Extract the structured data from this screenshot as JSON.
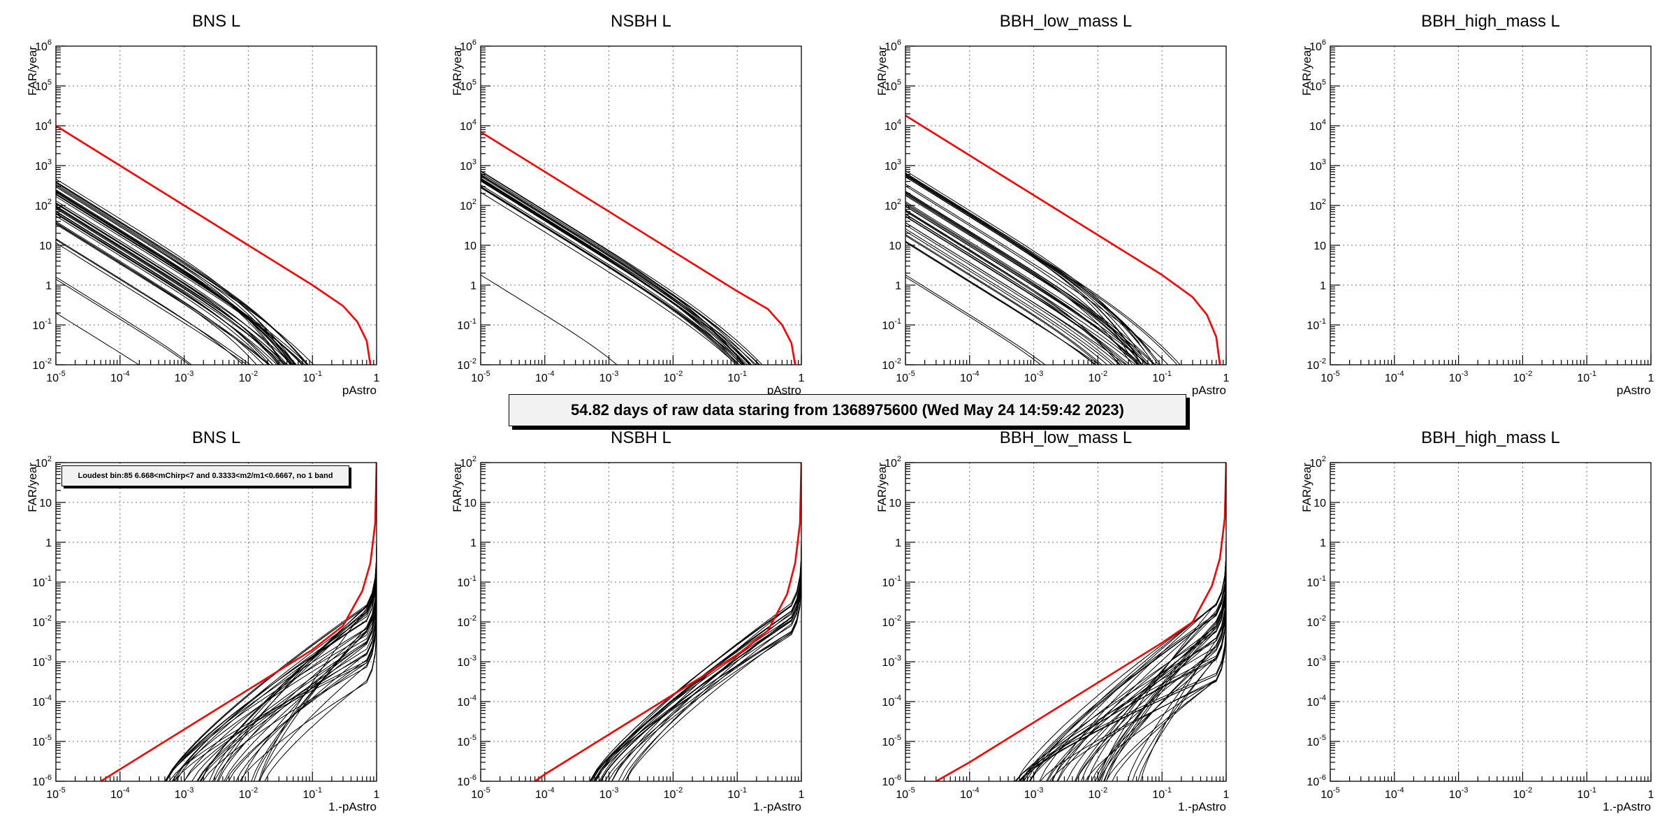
{
  "banner": {
    "text": "54.82 days of raw data staring from 1368975600 (Wed May 24 14:59:42 2023)"
  },
  "annotations": {
    "loudest": "Loudest bin:85 6.668<mChirp<7 and 0.3333<m2/m1<0.6667, no 1 band"
  },
  "colors": {
    "signal": "#ff0000",
    "bins": "#000000",
    "grid": "#000000"
  },
  "chart_data": [
    {
      "type": "line",
      "title": "BNS L",
      "xlabel": "pAstro",
      "ylabel": "FAR/year",
      "xscale": "log",
      "yscale": "log",
      "xlim": [
        1e-05,
        1
      ],
      "ylim": [
        0.01,
        1000000
      ],
      "grid": true,
      "xticks": [
        "10^-5",
        "10^-4",
        "10^-3",
        "10^-2",
        "10^-1",
        "1"
      ],
      "yticks": [
        "10^-2",
        "10^-1",
        "1",
        "10",
        "10^2",
        "10^3",
        "10^4",
        "10^5",
        "10^6"
      ],
      "highlight": {
        "x": [
          1e-05,
          0.0001,
          0.001,
          0.01,
          0.1,
          0.3,
          0.5,
          0.7,
          0.8
        ],
        "y": [
          10000,
          1000,
          100,
          10,
          1,
          0.3,
          0.12,
          0.04,
          0.01
        ]
      },
      "family": {
        "count": 40,
        "y_at_xmin_range": [
          10,
          500
        ],
        "x_end_range": [
          0.04,
          0.2
        ],
        "outliers_y_at_xmin": [
          1.6,
          1.4,
          0.2
        ]
      }
    },
    {
      "type": "line",
      "title": "NSBH L",
      "xlabel": "pAstro",
      "ylabel": "FAR/year",
      "xscale": "log",
      "yscale": "log",
      "xlim": [
        1e-05,
        1
      ],
      "ylim": [
        0.01,
        1000000
      ],
      "grid": true,
      "xticks": [
        "10^-5",
        "10^-4",
        "10^-3",
        "10^-2",
        "10^-1",
        "1"
      ],
      "yticks": [
        "10^-2",
        "10^-1",
        "1",
        "10",
        "10^2",
        "10^3",
        "10^4",
        "10^5",
        "10^6"
      ],
      "highlight": {
        "x": [
          1e-05,
          0.0001,
          0.001,
          0.01,
          0.1,
          0.3,
          0.5,
          0.7,
          0.8
        ],
        "y": [
          7000,
          700,
          70,
          7,
          0.7,
          0.25,
          0.1,
          0.035,
          0.01
        ]
      },
      "family": {
        "count": 22,
        "y_at_xmin_range": [
          200,
          800
        ],
        "x_end_range": [
          0.2,
          0.5
        ],
        "outliers_y_at_xmin": [
          1.8
        ]
      }
    },
    {
      "type": "line",
      "title": "BBH_low_mass L",
      "xlabel": "pAstro",
      "ylabel": "FAR/year",
      "xscale": "log",
      "yscale": "log",
      "xlim": [
        1e-05,
        1
      ],
      "ylim": [
        0.01,
        1000000
      ],
      "grid": true,
      "xticks": [
        "10^-5",
        "10^-4",
        "10^-3",
        "10^-2",
        "10^-1",
        "1"
      ],
      "yticks": [
        "10^-2",
        "10^-1",
        "1",
        "10",
        "10^2",
        "10^3",
        "10^4",
        "10^5",
        "10^6"
      ],
      "highlight": {
        "x": [
          1e-05,
          0.0001,
          0.001,
          0.01,
          0.1,
          0.3,
          0.5,
          0.7,
          0.8
        ],
        "y": [
          18000,
          1800,
          180,
          18,
          1.8,
          0.5,
          0.18,
          0.05,
          0.01
        ]
      },
      "family": {
        "count": 45,
        "y_at_xmin_range": [
          5,
          900
        ],
        "x_end_range": [
          0.03,
          0.4
        ],
        "outliers_y_at_xmin": [
          1.8,
          1.6
        ]
      }
    },
    {
      "type": "line",
      "title": "BBH_high_mass L",
      "xlabel": "pAstro",
      "ylabel": "FAR/year",
      "xscale": "log",
      "yscale": "log",
      "xlim": [
        1e-05,
        1
      ],
      "ylim": [
        0.01,
        1000000
      ],
      "grid": true,
      "xticks": [
        "10^-5",
        "10^-4",
        "10^-3",
        "10^-2",
        "10^-1",
        "1"
      ],
      "yticks": [
        "10^-2",
        "10^-1",
        "1",
        "10",
        "10^2",
        "10^3",
        "10^4",
        "10^5",
        "10^6"
      ]
    },
    {
      "type": "line",
      "title": "BNS L",
      "xlabel": "1.-pAstro",
      "ylabel": "FAR/year",
      "xscale": "log",
      "yscale": "log",
      "xlim": [
        1e-05,
        1
      ],
      "ylim": [
        1e-06,
        100
      ],
      "grid": true,
      "xticks": [
        "10^-5",
        "10^-4",
        "10^-3",
        "10^-2",
        "10^-1",
        "1"
      ],
      "yticks": [
        "10^-6",
        "10^-5",
        "10^-4",
        "10^-3",
        "10^-2",
        "10^-1",
        "1",
        "10",
        "10^2"
      ],
      "highlight": {
        "x": [
          5e-05,
          0.0001,
          0.001,
          0.01,
          0.1,
          0.3,
          0.6,
          0.8,
          0.95,
          1
        ],
        "y": [
          1e-06,
          2e-06,
          2e-05,
          0.0002,
          0.002,
          0.008,
          0.06,
          0.3,
          3,
          100
        ]
      },
      "family": {
        "count": 40,
        "x_at_ymin_range": [
          0.0005,
          0.05
        ],
        "y_top_range": [
          0.001,
          0.1
        ]
      }
    },
    {
      "type": "line",
      "title": "NSBH L",
      "xlabel": "1.-pAstro",
      "ylabel": "FAR/year",
      "xscale": "log",
      "yscale": "log",
      "xlim": [
        1e-05,
        1
      ],
      "ylim": [
        1e-06,
        100
      ],
      "grid": true,
      "xticks": [
        "10^-5",
        "10^-4",
        "10^-3",
        "10^-2",
        "10^-1",
        "1"
      ],
      "yticks": [
        "10^-6",
        "10^-5",
        "10^-4",
        "10^-3",
        "10^-2",
        "10^-1",
        "1",
        "10",
        "10^2"
      ],
      "highlight": {
        "x": [
          7e-05,
          0.0001,
          0.001,
          0.01,
          0.1,
          0.3,
          0.6,
          0.8,
          0.95,
          1
        ],
        "y": [
          1e-06,
          1.5e-06,
          1.5e-05,
          0.00015,
          0.0015,
          0.006,
          0.05,
          0.3,
          3,
          100
        ]
      },
      "family": {
        "count": 22,
        "x_at_ymin_range": [
          0.0005,
          0.002
        ],
        "y_top_range": [
          0.01,
          0.1
        ]
      }
    },
    {
      "type": "line",
      "title": "BBH_low_mass L",
      "xlabel": "1.-pAstro",
      "ylabel": "FAR/year",
      "xscale": "log",
      "yscale": "log",
      "xlim": [
        1e-05,
        1
      ],
      "ylim": [
        1e-06,
        100
      ],
      "grid": true,
      "xticks": [
        "10^-5",
        "10^-4",
        "10^-3",
        "10^-2",
        "10^-1",
        "1"
      ],
      "yticks": [
        "10^-6",
        "10^-5",
        "10^-4",
        "10^-3",
        "10^-2",
        "10^-1",
        "1",
        "10",
        "10^2"
      ],
      "highlight": {
        "x": [
          3e-05,
          0.0001,
          0.001,
          0.01,
          0.1,
          0.3,
          0.6,
          0.8,
          0.95,
          1
        ],
        "y": [
          1e-06,
          3e-06,
          3e-05,
          0.0003,
          0.003,
          0.01,
          0.08,
          0.4,
          4,
          100
        ]
      },
      "family": {
        "count": 45,
        "x_at_ymin_range": [
          0.0005,
          0.05
        ],
        "y_top_range": [
          0.001,
          0.1
        ]
      }
    },
    {
      "type": "line",
      "title": "BBH_high_mass L",
      "xlabel": "1.-pAstro",
      "ylabel": "FAR/year",
      "xscale": "log",
      "yscale": "log",
      "xlim": [
        1e-05,
        1
      ],
      "ylim": [
        1e-06,
        100
      ],
      "grid": true,
      "xticks": [
        "10^-5",
        "10^-4",
        "10^-3",
        "10^-2",
        "10^-1",
        "1"
      ],
      "yticks": [
        "10^-6",
        "10^-5",
        "10^-4",
        "10^-3",
        "10^-2",
        "10^-1",
        "1",
        "10",
        "10^2"
      ]
    }
  ]
}
